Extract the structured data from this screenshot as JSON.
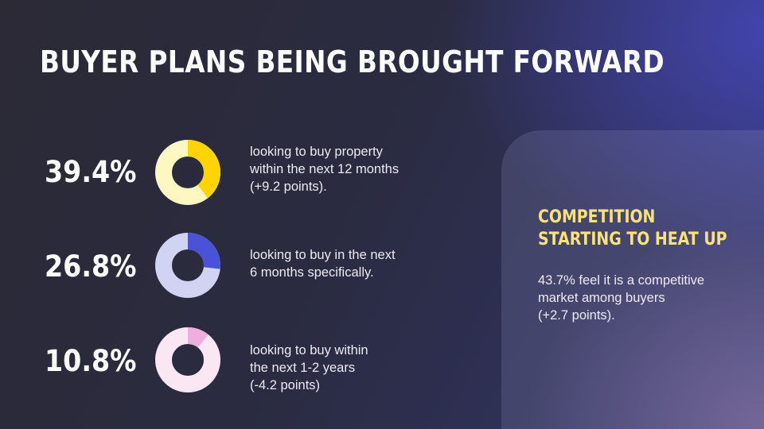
{
  "page": {
    "title": "BUYER PLANS BEING BROUGHT FORWARD"
  },
  "stats": [
    {
      "value_label": "39.4%",
      "description_lines": [
        "looking to buy property",
        "within the next 12 months",
        "(+9.2 points)."
      ],
      "accent_color": "#ffd400",
      "track_color": "#fff7c2"
    },
    {
      "value_label": "26.8%",
      "description_lines": [
        "looking to buy in the next",
        "6 months specifically."
      ],
      "accent_color": "#4a52d6",
      "track_color": "#d1d3f3"
    },
    {
      "value_label": "10.8%",
      "description_lines": [
        "looking to buy within",
        "the next 1-2 years",
        "(-4.2 points)"
      ],
      "accent_color": "#f0aede",
      "track_color": "#fbe6f4"
    }
  ],
  "panel": {
    "title_lines": [
      "COMPETITION",
      "STARTING TO HEAT UP"
    ],
    "text_lines": [
      "43.7% feel it is a competitive",
      "market among buyers",
      "(+2.7 points)."
    ],
    "title_color": "#fbe27a"
  },
  "chart_data": [
    {
      "type": "pie",
      "categories": [
        "looking to buy property within the next 12 months"
      ],
      "values": [
        39.4
      ]
    },
    {
      "type": "pie",
      "categories": [
        "looking to buy in the next 6 months specifically"
      ],
      "values": [
        26.8
      ]
    },
    {
      "type": "pie",
      "categories": [
        "looking to buy within the next 1-2 years"
      ],
      "values": [
        10.8
      ]
    }
  ]
}
